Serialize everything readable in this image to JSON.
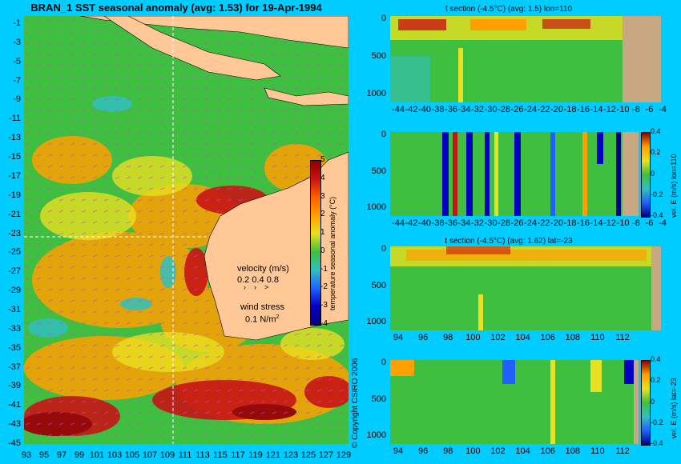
{
  "map": {
    "title": "BRAN_1 SST seasonal anomaly (avg: 1.53) for 19-Apr-1994",
    "y_ticks": [
      "-1",
      "-3",
      "-5",
      "-7",
      "-9",
      "-11",
      "-13",
      "-15",
      "-17",
      "-19",
      "-21",
      "-23",
      "-25",
      "-27",
      "-29",
      "-31",
      "-33",
      "-35",
      "-37",
      "-39",
      "-41",
      "-43",
      "-45"
    ],
    "x_ticks": [
      "93",
      "95",
      "97",
      "99",
      "101",
      "103",
      "105",
      "107",
      "109",
      "111",
      "113",
      "115",
      "117",
      "119",
      "121",
      "123",
      "125",
      "127",
      "129"
    ],
    "colorbar": {
      "label": "temperature seasonal anomaly (°C)",
      "ticks": [
        "5",
        "4",
        "3",
        "2",
        "1",
        "0",
        "-1",
        "-2",
        "-3",
        "-4"
      ]
    },
    "legend": {
      "velocity_label": "velocity (m/s)",
      "velocity_scale": "0.2 0.4 0.8",
      "wind_label": "wind stress",
      "wind_value": "0.1 N/m",
      "wind_sup": "2"
    },
    "copyright": "© Copyright CSIRO 2006",
    "colors": {
      "ocean_green": "#3fbf3f",
      "land": "#ffc896",
      "hot": "#c81414",
      "warm": "#ffa000",
      "cool": "#30c0c0"
    }
  },
  "panels": [
    {
      "title": "t section (-4.5°C) (avg: 1.5) lon=110",
      "y_ticks": [
        "0",
        "500",
        "1000"
      ],
      "x_ticks": [
        "-44",
        "-42",
        "-40",
        "-38",
        "-36",
        "-34",
        "-32",
        "-30",
        "-28",
        "-26",
        "-24",
        "-22",
        "-20",
        "-18",
        "-16",
        "-14",
        "-12",
        "-10",
        "-8",
        "-6",
        "-4"
      ]
    },
    {
      "title": "",
      "y_ticks": [
        "0",
        "500",
        "1000"
      ],
      "x_ticks": [
        "-44",
        "-42",
        "-40",
        "-38",
        "-36",
        "-34",
        "-32",
        "-30",
        "-28",
        "-26",
        "-24",
        "-22",
        "-20",
        "-18",
        "-16",
        "-14",
        "-12",
        "-10",
        "-8",
        "-6",
        "-4"
      ],
      "colorbar_label": "vel. E (m/s) lon=110",
      "colorbar_ticks": [
        "0.4",
        "0.2",
        "0",
        "-0.2",
        "-0.4"
      ]
    },
    {
      "title": "t section (-4.5°C) (avg: 1.62) lat=-23",
      "y_ticks": [
        "0",
        "500",
        "1000"
      ],
      "x_ticks": [
        "94",
        "96",
        "98",
        "100",
        "102",
        "104",
        "106",
        "108",
        "110",
        "112"
      ]
    },
    {
      "title": "",
      "y_ticks": [
        "0",
        "500",
        "1000"
      ],
      "x_ticks": [
        "94",
        "96",
        "98",
        "100",
        "102",
        "104",
        "106",
        "108",
        "110",
        "112"
      ],
      "colorbar_label": "vel. E (m/s) lat=-23",
      "colorbar_ticks": [
        "0.4",
        "0.2",
        "0",
        "-0.2",
        "-0.4"
      ]
    }
  ]
}
